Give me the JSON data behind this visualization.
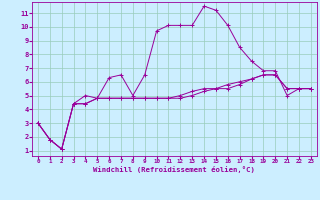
{
  "xlabel": "Windchill (Refroidissement éolien,°C)",
  "bg_color": "#cceeff",
  "line_color": "#990099",
  "grid_color": "#99ccbb",
  "x_ticks": [
    0,
    1,
    2,
    3,
    4,
    5,
    6,
    7,
    8,
    9,
    10,
    11,
    12,
    13,
    14,
    15,
    16,
    17,
    18,
    19,
    20,
    21,
    22,
    23
  ],
  "y_ticks": [
    1,
    2,
    3,
    4,
    5,
    6,
    7,
    8,
    9,
    10,
    11
  ],
  "series1_x": [
    0,
    1,
    2,
    3,
    4,
    5,
    6,
    7,
    8,
    9,
    10,
    11,
    12,
    13,
    14,
    15,
    16,
    17,
    18,
    19,
    20,
    21,
    22,
    23
  ],
  "series1_y": [
    3.0,
    1.8,
    1.1,
    4.4,
    5.0,
    4.8,
    6.3,
    6.5,
    5.0,
    6.5,
    9.7,
    10.1,
    10.1,
    10.1,
    11.5,
    11.2,
    10.1,
    8.5,
    7.5,
    6.8,
    6.8,
    5.0,
    5.5,
    5.5
  ],
  "series2_x": [
    0,
    1,
    2,
    3,
    4,
    5,
    6,
    7,
    8,
    9,
    10,
    11,
    12,
    13,
    14,
    15,
    16,
    17,
    18,
    19,
    20,
    21,
    22,
    23
  ],
  "series2_y": [
    3.0,
    1.8,
    1.1,
    4.4,
    4.4,
    4.8,
    4.8,
    4.8,
    4.8,
    4.8,
    4.8,
    4.8,
    4.8,
    5.0,
    5.3,
    5.5,
    5.5,
    5.8,
    6.2,
    6.5,
    6.5,
    5.5,
    5.5,
    5.5
  ],
  "series3_x": [
    0,
    1,
    2,
    3,
    4,
    5,
    6,
    7,
    8,
    9,
    10,
    11,
    12,
    13,
    14,
    15,
    16,
    17,
    18,
    19,
    20,
    21,
    22,
    23
  ],
  "series3_y": [
    3.0,
    1.8,
    1.1,
    4.4,
    4.4,
    4.8,
    4.8,
    4.8,
    4.8,
    4.8,
    4.8,
    4.8,
    5.0,
    5.3,
    5.5,
    5.5,
    5.8,
    6.0,
    6.2,
    6.5,
    6.5,
    5.5,
    5.5,
    5.5
  ],
  "ylim": [
    0.6,
    11.8
  ],
  "xlim": [
    -0.5,
    23.5
  ]
}
